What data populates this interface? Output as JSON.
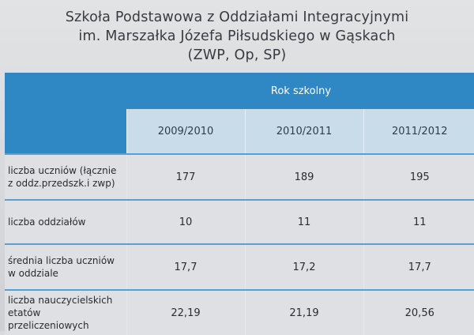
{
  "title": {
    "line1": "Szkoła Podstawowa z Oddziałami Integracyjnymi",
    "line2": "im. Marszałka Józefa Piłsudskiego w Gąskach",
    "line3": "(ZWP, Op, SP)"
  },
  "table": {
    "group_header": "Rok szkolny",
    "years": [
      "2009/2010",
      "2010/2011",
      "2011/2012"
    ],
    "rows": [
      {
        "label": [
          "liczba uczniów (łącznie",
          "z oddz.przedszk.i zwp)"
        ],
        "values": [
          "177",
          "189",
          "195"
        ]
      },
      {
        "label": [
          "liczba oddziałów",
          ""
        ],
        "values": [
          "10",
          "11",
          "11"
        ]
      },
      {
        "label": [
          "średnia liczba uczniów",
          "w oddziale"
        ],
        "values": [
          "17,7",
          "17,2",
          "17,7"
        ]
      },
      {
        "label": [
          "liczba nauczycielskich",
          "etatów",
          "przeliczeniowych"
        ],
        "values": [
          "22,19",
          "21,19",
          "20,56"
        ]
      }
    ]
  },
  "colors": {
    "header_blue": "#2f87c4",
    "year_row": "#c9dcea",
    "divider": "#5a9fd2"
  }
}
